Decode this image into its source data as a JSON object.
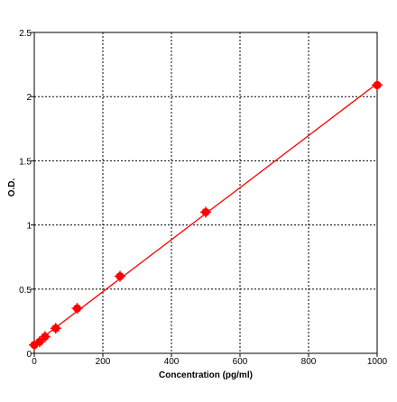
{
  "chart_data": {
    "type": "scatter",
    "xlabel": "Concentration (pg/ml)",
    "ylabel": "O.D.",
    "xlim": [
      0,
      1000
    ],
    "ylim": [
      0,
      2.5
    ],
    "x_ticks": [
      0,
      200,
      400,
      600,
      800,
      1000
    ],
    "y_ticks": [
      0,
      0.5,
      1,
      1.5,
      2,
      2.5
    ],
    "x_tick_labels": [
      "0",
      "200",
      "400",
      "600",
      "800",
      "1000"
    ],
    "y_tick_labels": [
      "0",
      "0.5",
      "1",
      "1.5",
      "2",
      "2.5"
    ],
    "grid": true,
    "grid_style": "dotted",
    "legend": "none",
    "series": [
      {
        "marker_color": "#ff0000",
        "line_color": "#ff0000",
        "fit": "linear",
        "points": [
          {
            "x": 0,
            "y": 0.065
          },
          {
            "x": 15.6,
            "y": 0.09
          },
          {
            "x": 31.25,
            "y": 0.13
          },
          {
            "x": 62.5,
            "y": 0.195
          },
          {
            "x": 125,
            "y": 0.35
          },
          {
            "x": 250,
            "y": 0.6
          },
          {
            "x": 500,
            "y": 1.1
          },
          {
            "x": 1000,
            "y": 2.09
          }
        ]
      }
    ]
  }
}
